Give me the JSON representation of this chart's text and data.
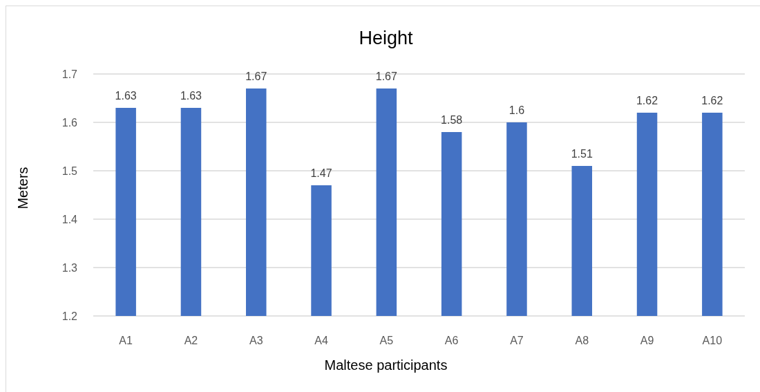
{
  "chart_data": {
    "type": "bar",
    "title": "Height",
    "xlabel": "Maltese participants",
    "ylabel": "Meters",
    "categories": [
      "A1",
      "A2",
      "A3",
      "A4",
      "A5",
      "A6",
      "A7",
      "A8",
      "A9",
      "A10"
    ],
    "values": [
      1.63,
      1.63,
      1.67,
      1.47,
      1.67,
      1.58,
      1.6,
      1.51,
      1.62,
      1.62
    ],
    "color": "#4472c4",
    "ylim": [
      1.2,
      1.7
    ],
    "yticks": [
      1.2,
      1.3,
      1.4,
      1.5,
      1.6,
      1.7
    ],
    "grid": "y",
    "data_labels": true
  }
}
